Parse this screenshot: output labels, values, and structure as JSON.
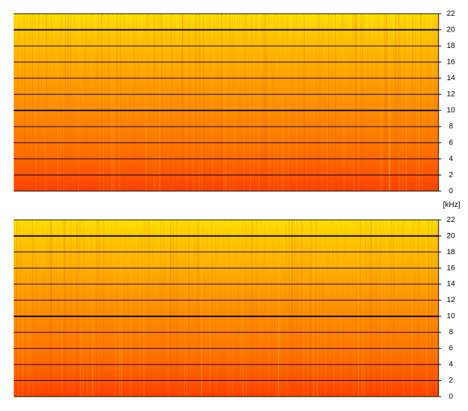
{
  "chart_data": [
    {
      "type": "spectrogram",
      "ylim": [
        0,
        22
      ],
      "yticks": [
        0,
        2,
        4,
        6,
        8,
        10,
        12,
        14,
        16,
        18,
        20,
        22
      ],
      "ylabel": "[kHz]",
      "grid": true
    },
    {
      "type": "spectrogram",
      "ylim": [
        0,
        22
      ],
      "yticks": [
        0,
        2,
        4,
        6,
        8,
        10,
        12,
        14,
        16,
        18,
        20,
        22
      ],
      "grid": true
    }
  ]
}
